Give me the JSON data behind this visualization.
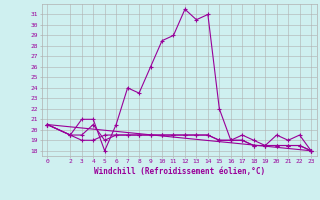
{
  "xlabel": "Windchill (Refroidissement éolien,°C)",
  "background_color": "#cff0f0",
  "line_color": "#990099",
  "grid_color": "#b0b0b0",
  "x_ticks": [
    0,
    2,
    3,
    4,
    5,
    6,
    7,
    8,
    9,
    10,
    11,
    12,
    13,
    14,
    15,
    16,
    17,
    18,
    19,
    20,
    21,
    22,
    23
  ],
  "ylim": [
    17.5,
    32.0
  ],
  "xlim": [
    -0.5,
    23.5
  ],
  "series": [
    {
      "x": [
        0,
        2,
        3,
        4,
        5,
        6,
        7,
        8,
        9,
        10,
        11,
        12,
        13,
        14,
        15,
        16,
        17,
        18,
        19,
        20,
        21,
        22,
        23
      ],
      "y": [
        20.5,
        19.5,
        21.0,
        21.0,
        18.0,
        20.5,
        24.0,
        23.5,
        26.0,
        28.5,
        29.0,
        31.5,
        30.5,
        31.0,
        22.0,
        19.0,
        19.5,
        19.0,
        18.5,
        19.5,
        19.0,
        19.5,
        18.0
      ]
    },
    {
      "x": [
        0,
        23
      ],
      "y": [
        20.5,
        18.0
      ]
    },
    {
      "x": [
        0,
        2,
        3,
        4,
        5,
        6,
        7,
        8,
        9,
        10,
        11,
        12,
        13,
        14,
        15,
        16,
        17,
        18,
        19,
        20,
        21,
        22,
        23
      ],
      "y": [
        20.5,
        19.5,
        19.5,
        20.5,
        19.0,
        19.5,
        19.5,
        19.5,
        19.5,
        19.5,
        19.5,
        19.5,
        19.5,
        19.5,
        19.0,
        19.0,
        19.0,
        18.5,
        18.5,
        18.5,
        18.5,
        18.5,
        18.0
      ]
    },
    {
      "x": [
        0,
        2,
        3,
        4,
        5,
        6,
        7,
        8,
        9,
        10,
        11,
        12,
        13,
        14,
        15,
        16,
        17,
        18,
        19,
        20,
        21,
        22,
        23
      ],
      "y": [
        20.5,
        19.5,
        19.0,
        19.0,
        19.5,
        19.5,
        19.5,
        19.5,
        19.5,
        19.5,
        19.5,
        19.5,
        19.5,
        19.5,
        19.0,
        19.0,
        19.0,
        18.5,
        18.5,
        18.5,
        18.5,
        18.5,
        18.0
      ]
    }
  ],
  "yticks": [
    18,
    19,
    20,
    21,
    22,
    23,
    24,
    25,
    26,
    27,
    28,
    29,
    30,
    31
  ]
}
